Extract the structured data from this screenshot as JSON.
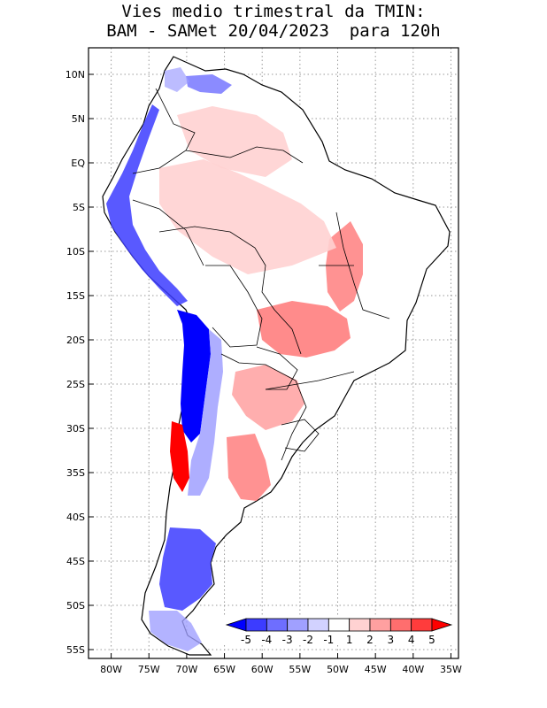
{
  "title": {
    "line1": "Vies medio trimestral da TMIN:",
    "line2": "BAM - SAMet 20/04/2023  para 120h"
  },
  "map": {
    "region": "South America",
    "lon_range": [
      -83,
      -34
    ],
    "lat_range": [
      -56,
      13
    ],
    "lon_ticks": [
      "80W",
      "75W",
      "70W",
      "65W",
      "60W",
      "55W",
      "50W",
      "45W",
      "40W",
      "35W"
    ],
    "lon_tick_values": [
      -80,
      -75,
      -70,
      -65,
      -60,
      -55,
      -50,
      -45,
      -40,
      -35
    ],
    "lat_ticks": [
      "10N",
      "5N",
      "EQ",
      "5S",
      "10S",
      "15S",
      "20S",
      "25S",
      "30S",
      "35S",
      "40S",
      "45S",
      "50S",
      "55S"
    ],
    "lat_tick_values": [
      10,
      5,
      0,
      -5,
      -10,
      -15,
      -20,
      -25,
      -30,
      -35,
      -40,
      -45,
      -50,
      -55
    ],
    "grid": "dotted"
  },
  "colorbar": {
    "labels": [
      "-5",
      "-4",
      "-3",
      "-2",
      "-1",
      "1",
      "2",
      "3",
      "4",
      "5"
    ],
    "colors": [
      "#0000ff",
      "#3c3cff",
      "#6e6eff",
      "#a0a0ff",
      "#d2d2ff",
      "#ffffff",
      "#ffd2d2",
      "#ffa0a0",
      "#ff6e6e",
      "#ff3c3c",
      "#ff0000"
    ]
  },
  "colors": {
    "land": "#ffffff",
    "border": "#000000",
    "cold_bias": "#0000ff",
    "warm_bias": "#ff0000"
  }
}
